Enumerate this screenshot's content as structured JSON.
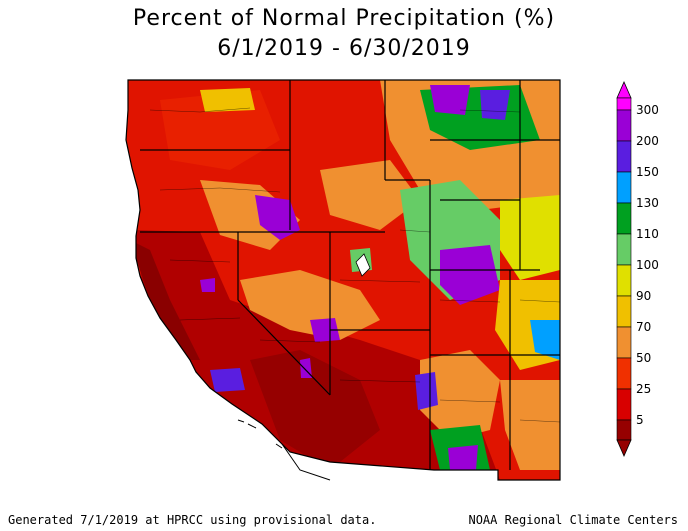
{
  "title": "Percent of Normal Precipitation (%)",
  "date_range": "6/1/2019 - 6/30/2019",
  "legend": {
    "labels": [
      "300",
      "200",
      "150",
      "130",
      "110",
      "100",
      "90",
      "70",
      "50",
      "25",
      "5"
    ],
    "colors": {
      "c300": "#ff00ff",
      "c200": "#9a00d6",
      "c150": "#5a1ee0",
      "c130": "#00a0ff",
      "c110": "#00a020",
      "c100": "#66cc66",
      "c90": "#e0e000",
      "c70": "#f0c000",
      "c50": "#f09030",
      "c25": "#f03000",
      "c5": "#d80000",
      "c0": "#960000"
    }
  },
  "footer": {
    "left": "Generated 7/1/2019 at HPRCC using provisional data.",
    "right": "NOAA Regional Climate Centers"
  }
}
